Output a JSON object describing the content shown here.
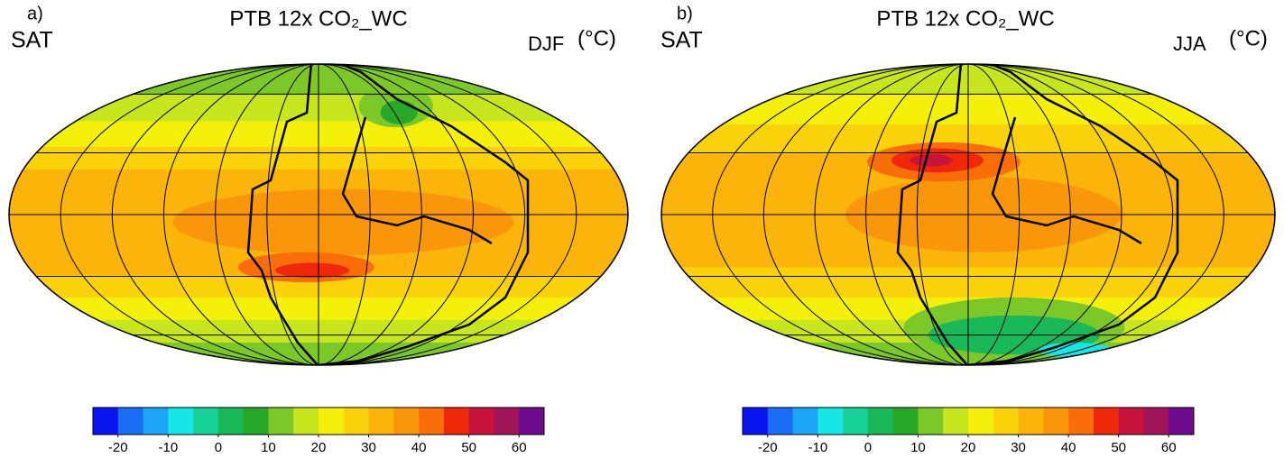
{
  "panels": [
    {
      "label": "a)",
      "variable": "SAT",
      "title": "PTB 12x CO₂_WC",
      "season": "DJF",
      "unit": "(°C)",
      "colorbar": {
        "colors": [
          "#0a14f0",
          "#1a6ef5",
          "#1aa5f5",
          "#17e6e6",
          "#17d296",
          "#19b95a",
          "#28a828",
          "#7cc828",
          "#c8e61e",
          "#f5f00a",
          "#fad20a",
          "#fab40a",
          "#fa960a",
          "#fa6e0a",
          "#f0280a",
          "#c8143c",
          "#a0145a",
          "#6e0a8c"
        ],
        "lim": [
          -25,
          65
        ],
        "ticks": [
          -20,
          -10,
          0,
          10,
          20,
          30,
          40,
          50,
          60
        ]
      }
    },
    {
      "label": "b)",
      "variable": "SAT",
      "title": "PTB 12x CO₂_WC",
      "season": "JJA",
      "unit": "(°C)",
      "colorbar": {
        "colors": [
          "#0a14f0",
          "#1a6ef5",
          "#1aa5f5",
          "#17e6e6",
          "#17d296",
          "#19b95a",
          "#28a828",
          "#7cc828",
          "#c8e61e",
          "#f5f00a",
          "#fad20a",
          "#fab40a",
          "#fa960a",
          "#fa6e0a",
          "#f0280a",
          "#c8143c",
          "#a0145a",
          "#6e0a8c"
        ],
        "lim": [
          -25,
          65
        ],
        "ticks": [
          -20,
          -10,
          0,
          10,
          20,
          30,
          40,
          50,
          60
        ]
      }
    }
  ]
}
